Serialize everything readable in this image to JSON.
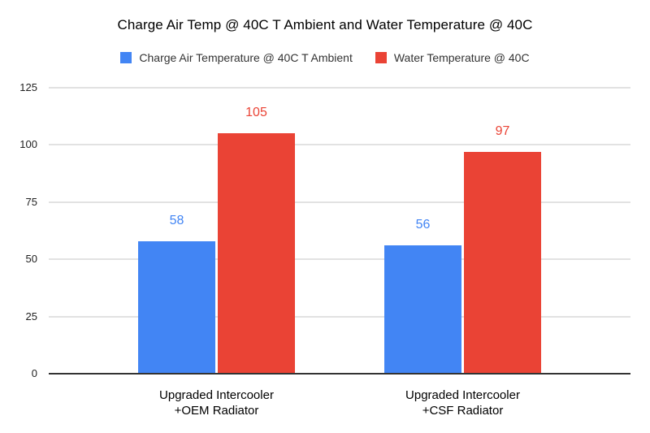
{
  "chart_data": {
    "type": "bar",
    "title": "Charge Air Temp @ 40C T Ambient and Water Temperature @ 40C",
    "categories": [
      "Upgraded Intercooler\n+OEM Radiator",
      "Upgraded Intercooler\n+CSF Radiator"
    ],
    "series": [
      {
        "key": "charge-air",
        "name": "Charge Air Temperature @ 40C T Ambient",
        "color": "#4285F4",
        "values": [
          58,
          56
        ]
      },
      {
        "key": "water",
        "name": "Water Temperature @ 40C",
        "color": "#EA4335",
        "values": [
          105,
          97
        ]
      }
    ],
    "y_ticks": [
      0,
      25,
      50,
      75,
      100,
      125
    ],
    "ylim": [
      0,
      125
    ],
    "grid": true,
    "data_labels": true,
    "legend_position": "top",
    "xlabel": "",
    "ylabel": "",
    "colors": {
      "background": "#ffffff",
      "gridline": "#e2e2e2",
      "axis_line": "#333333",
      "title_text": "#000000",
      "legend_text": "#333333",
      "tick_text": "#212121"
    }
  }
}
